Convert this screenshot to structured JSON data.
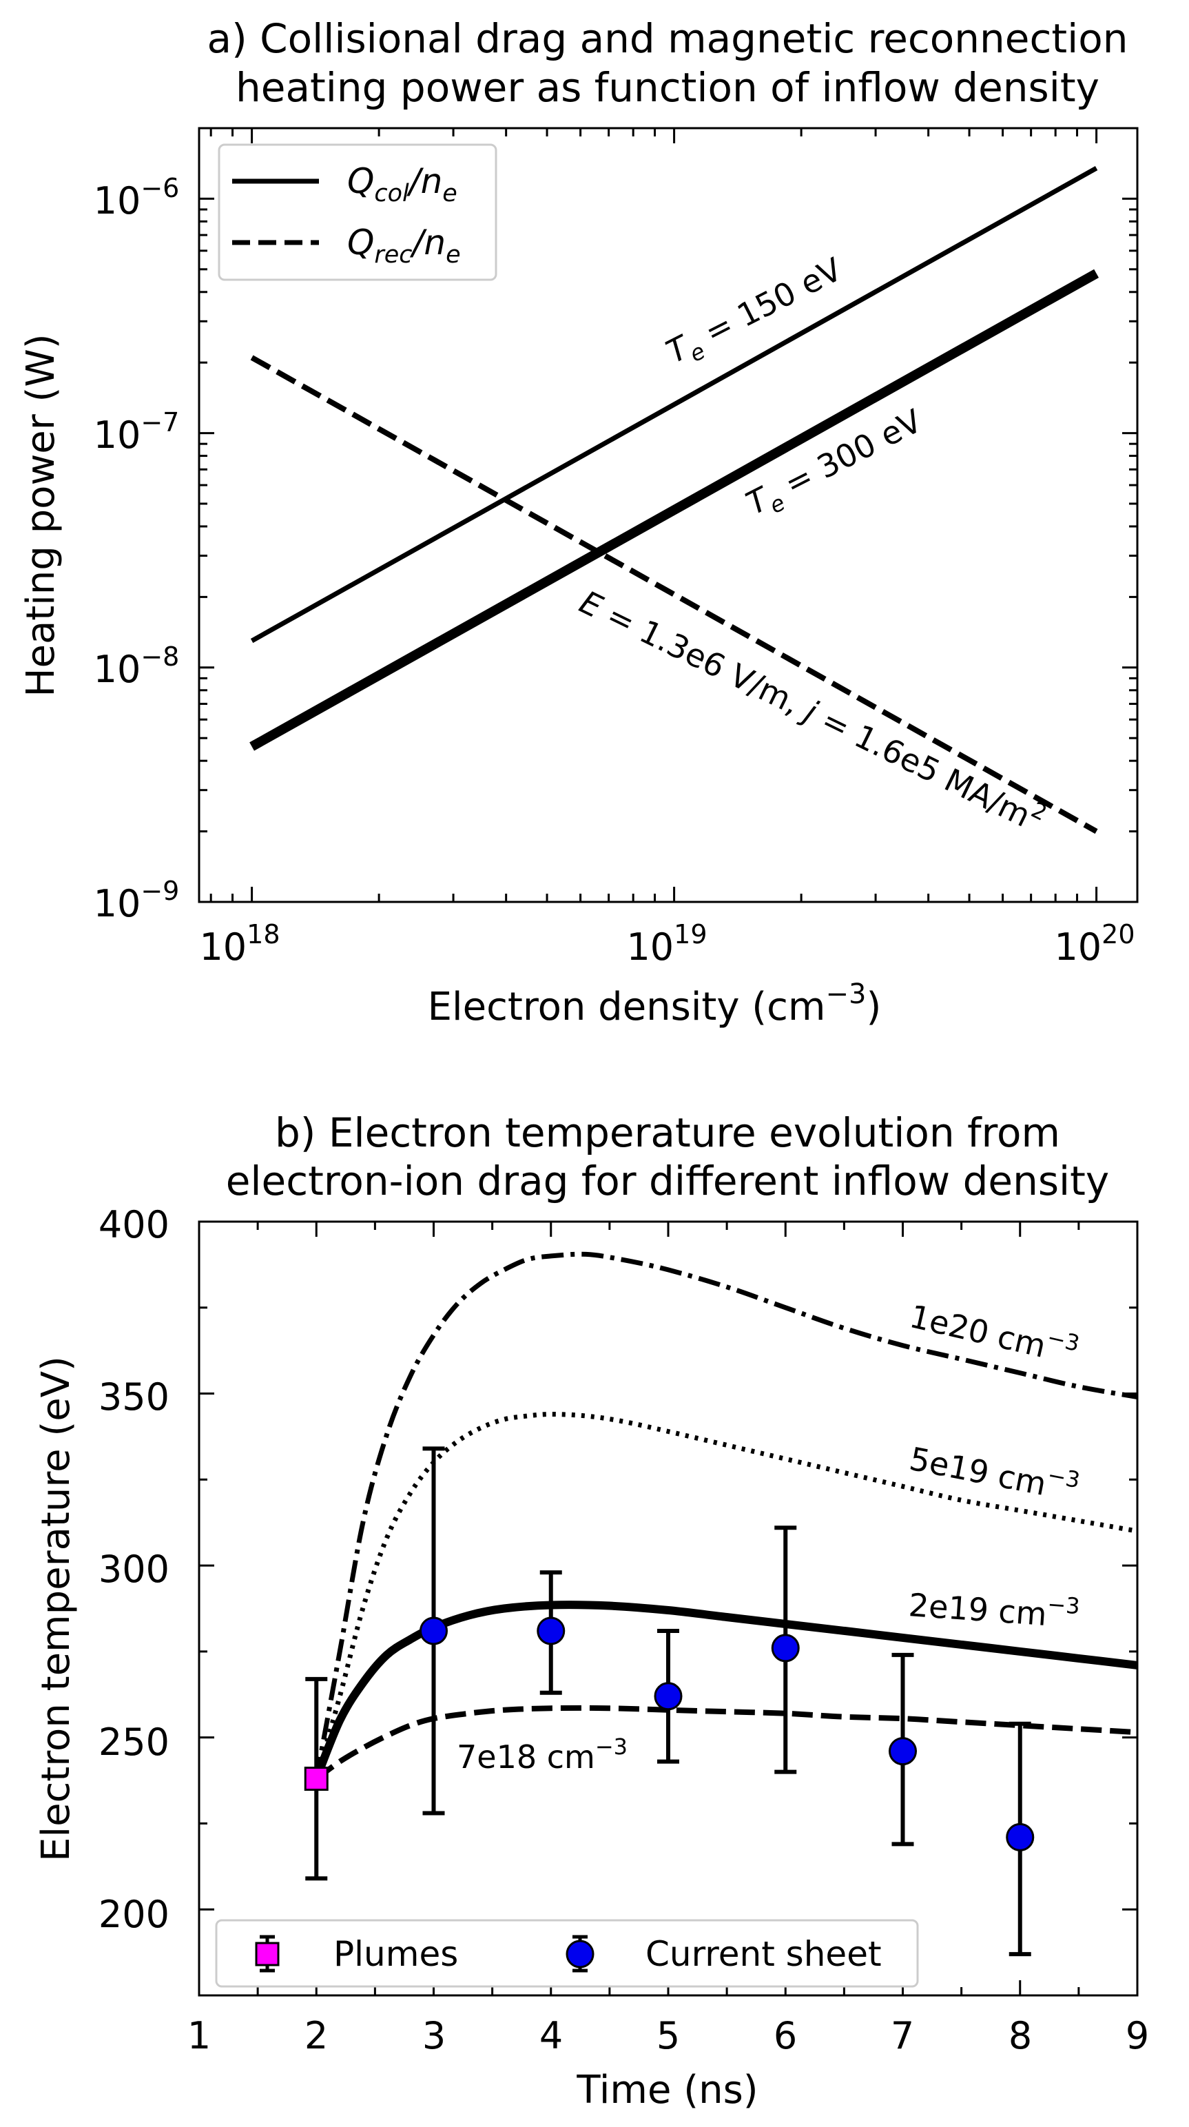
{
  "chart_data": [
    {
      "type": "line",
      "title_lines": [
        "a) Collisional drag and magnetic reconnection",
        "heating power as function of inflow density"
      ],
      "xlabel": "Electron density (cm",
      "xlabel_exp": "−3",
      "xlabel_end": ")",
      "ylabel": "Heating power (W)",
      "xscale": "log",
      "yscale": "log",
      "xlim": [
        7.5e+17,
        1.25e+20
      ],
      "ylim": [
        1e-09,
        2e-06
      ],
      "xticks": [
        {
          "value": 1e+18,
          "base": "10",
          "exp": "18"
        },
        {
          "value": 1e+19,
          "base": "10",
          "exp": "19"
        },
        {
          "value": 1e+20,
          "base": "10",
          "exp": "20"
        }
      ],
      "yticks": [
        {
          "value": 1e-09,
          "base": "10",
          "exp": "−9"
        },
        {
          "value": 1e-08,
          "base": "10",
          "exp": "−8"
        },
        {
          "value": 1e-07,
          "base": "10",
          "exp": "−7"
        },
        {
          "value": 1e-06,
          "base": "10",
          "exp": "−6"
        }
      ],
      "series": [
        {
          "name": "Te = 150 eV",
          "role": "Q_col",
          "style": "solid",
          "weight": "thin",
          "x": [
            1e+18,
            1e+20
          ],
          "y": [
            1.3e-08,
            1.35e-06
          ]
        },
        {
          "name": "Te = 300 eV",
          "role": "Q_col",
          "style": "solid",
          "weight": "thick",
          "x": [
            1e+18,
            1e+20
          ],
          "y": [
            4.6e-09,
            4.8e-07
          ]
        },
        {
          "name": "E = 1.3e6 V/m, j = 1.6e5 MA/m2",
          "role": "Q_rec",
          "style": "dashed",
          "weight": "normal",
          "x": [
            1e+18,
            1e+20
          ],
          "y": [
            2.1e-07,
            2e-09
          ]
        }
      ],
      "annotations": {
        "te150": {
          "prefix": "T",
          "sub": "e",
          "rest": " = 150 eV"
        },
        "te300": {
          "prefix": "T",
          "sub": "e",
          "rest": " = 300 eV"
        },
        "rec": {
          "part1": "E",
          "part2": " = 1.3e6 V/m, ",
          "part3": "j",
          "part4": " = 1.6e5 MA/m",
          "sup": "2"
        }
      },
      "legend": {
        "position": "top-left",
        "entries": [
          {
            "style": "solid",
            "main": "Q",
            "sub": "col",
            "mid": "/n",
            "sub2": "e"
          },
          {
            "style": "dashed",
            "main": "Q",
            "sub": "rec",
            "mid": "/n",
            "sub2": "e"
          }
        ]
      }
    },
    {
      "type": "line",
      "title_lines": [
        "b) Electron temperature evolution from",
        "electron-ion drag for different inflow density"
      ],
      "xlabel": "Time (ns)",
      "ylabel": "Electron temperature (eV)",
      "xlim": [
        1,
        9
      ],
      "ylim": [
        175,
        400
      ],
      "xticks": [
        1,
        2,
        3,
        4,
        5,
        6,
        7,
        8,
        9
      ],
      "yticks": [
        200,
        250,
        300,
        350,
        400
      ],
      "series": [
        {
          "name": "1e20 cm−3",
          "label_base": "1e20 cm",
          "label_exp": "−3",
          "style": "dashdot",
          "weight": "normal",
          "x": [
            2.0,
            2.2,
            2.4,
            2.6,
            2.8,
            3.0,
            3.2,
            3.4,
            3.6,
            3.8,
            4.0,
            4.3,
            4.6,
            5.0,
            5.5,
            6.0,
            6.5,
            7.0,
            7.5,
            8.0,
            8.5,
            9.0
          ],
          "y": [
            238,
            275,
            313,
            338,
            355,
            367,
            376,
            382,
            386,
            389,
            390,
            390.5,
            389,
            386,
            381,
            375,
            369,
            364,
            360,
            356,
            352,
            349
          ]
        },
        {
          "name": "5e19 cm−3",
          "label_base": "5e19 cm",
          "label_exp": "−3",
          "style": "dotted",
          "weight": "normal",
          "x": [
            2.0,
            2.2,
            2.4,
            2.6,
            2.8,
            3.0,
            3.2,
            3.4,
            3.6,
            3.8,
            4.0,
            4.3,
            4.6,
            5.0,
            5.5,
            6.0,
            6.5,
            7.0,
            7.5,
            8.0,
            8.5,
            9.0
          ],
          "y": [
            238,
            262,
            288,
            308,
            321,
            330,
            336,
            340,
            342.5,
            343.5,
            344,
            343.5,
            342,
            339,
            335,
            331,
            327,
            323,
            319,
            316,
            313,
            310
          ]
        },
        {
          "name": "2e19 cm−3",
          "label_base": "2e19 cm",
          "label_exp": "−3",
          "style": "solid",
          "weight": "thick",
          "x": [
            2.0,
            2.2,
            2.4,
            2.6,
            2.8,
            3.0,
            3.3,
            3.6,
            4.0,
            4.5,
            5.0,
            5.5,
            6.0,
            6.5,
            7.0,
            7.5,
            8.0,
            8.5,
            9.0
          ],
          "y": [
            238,
            255,
            266,
            274,
            278.5,
            282,
            285.5,
            287.5,
            288.5,
            288.3,
            287,
            285,
            283,
            281,
            279,
            277,
            275,
            273,
            271
          ]
        },
        {
          "name": "7e18 cm−3",
          "label_base": "7e18 cm",
          "label_exp": "−3",
          "style": "dashed",
          "weight": "normal",
          "x": [
            2.0,
            2.2,
            2.4,
            2.6,
            2.8,
            3.0,
            3.3,
            3.6,
            4.0,
            4.5,
            5.0,
            5.5,
            6.0,
            6.5,
            7.0,
            7.5,
            8.0,
            8.5,
            9.0
          ],
          "y": [
            238,
            243,
            247,
            250.5,
            253.5,
            255.5,
            257,
            258,
            258.5,
            258.5,
            258,
            257.5,
            257,
            256,
            255.5,
            254.5,
            253.5,
            252.5,
            251.5
          ]
        }
      ],
      "points": [
        {
          "series": "Plumes",
          "marker": "square",
          "color": "#ff00ff",
          "x": 2,
          "y": 238,
          "err_low": 209,
          "err_high": 267
        },
        {
          "series": "Current sheet",
          "marker": "circle",
          "color": "#0000ee",
          "x": 3,
          "y": 281,
          "err_low": 228,
          "err_high": 334
        },
        {
          "series": "Current sheet",
          "marker": "circle",
          "color": "#0000ee",
          "x": 4,
          "y": 281,
          "err_low": 263,
          "err_high": 298
        },
        {
          "series": "Current sheet",
          "marker": "circle",
          "color": "#0000ee",
          "x": 5,
          "y": 262,
          "err_low": 243,
          "err_high": 281
        },
        {
          "series": "Current sheet",
          "marker": "circle",
          "color": "#0000ee",
          "x": 6,
          "y": 276,
          "err_low": 240,
          "err_high": 311
        },
        {
          "series": "Current sheet",
          "marker": "circle",
          "color": "#0000ee",
          "x": 7,
          "y": 246,
          "err_low": 219,
          "err_high": 274
        },
        {
          "series": "Current sheet",
          "marker": "circle",
          "color": "#0000ee",
          "x": 8,
          "y": 221,
          "err_low": 187,
          "err_high": 254
        }
      ],
      "legend": {
        "position": "bottom-left",
        "entries": [
          {
            "label": "Plumes",
            "marker": "square",
            "color": "#ff00ff"
          },
          {
            "label": "Current sheet",
            "marker": "circle",
            "color": "#0000ee"
          }
        ]
      }
    }
  ]
}
